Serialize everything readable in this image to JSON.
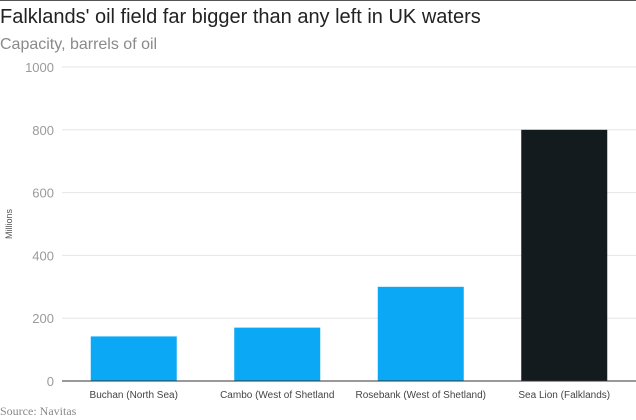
{
  "chart_data": {
    "type": "bar",
    "title": "Falklands' oil field far bigger than any left in UK waters",
    "subtitle": "Capacity, barrels of oil",
    "ylabel": "Millions",
    "xlabel": "",
    "ylim": [
      0,
      1000
    ],
    "yticks": [
      0,
      200,
      400,
      600,
      800,
      1000
    ],
    "grid": true,
    "categories": [
      "Buchan (North Sea)",
      "Cambo (West of Shetland",
      "Rosebank (West of Shetland)",
      "Sea Lion (Falklands)"
    ],
    "values": [
      142,
      170,
      300,
      800
    ],
    "colors": [
      "#0aa8f5",
      "#0aa8f5",
      "#0aa8f5",
      "#141b1f"
    ],
    "source": "Source: Navitas"
  },
  "colors": {
    "bar_blue": "#0aa8f5",
    "bar_dark": "#141b1f",
    "grid": "#e6e6e6",
    "axis": "#333333"
  }
}
